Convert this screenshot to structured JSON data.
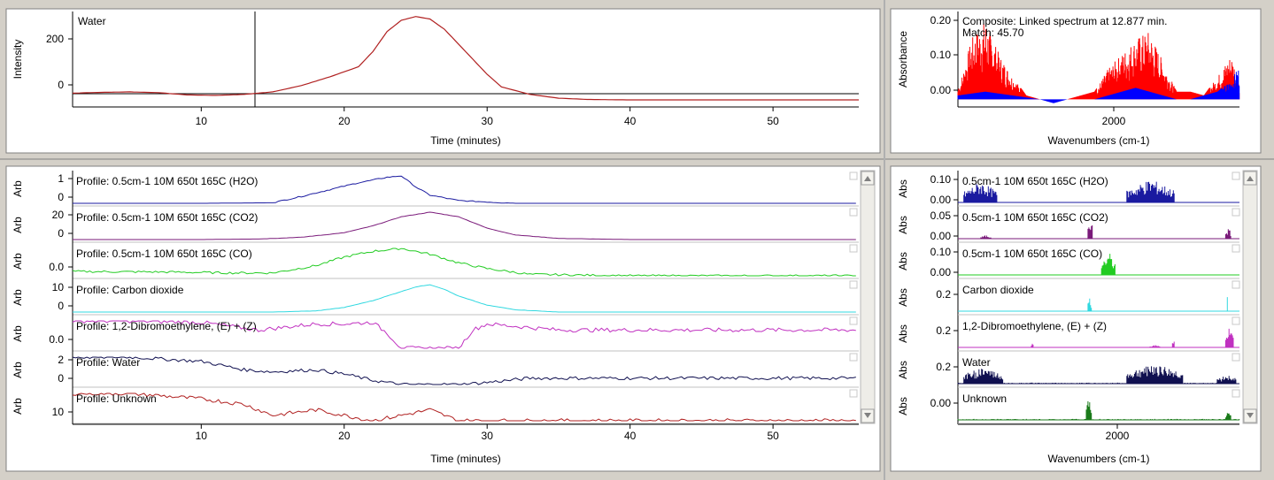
{
  "colors": {
    "background": "#d4d0c8",
    "panel": "#ffffff",
    "h2o_blue": "#1a1aa0",
    "co2_purple": "#7a1a7a",
    "co_green": "#22cc22",
    "carbon_dioxide_cyan": "#30d8e0",
    "dibromo_magenta": "#c030c0",
    "water_navy": "#101050",
    "unknown_red": "#b02020",
    "unknown_green": "#1a7a1a",
    "composite_red": "#ff0000",
    "composite_blue": "#0000ff"
  },
  "top_chromatogram": {
    "label": "Water",
    "ylabel": "Intensity",
    "xlabel": "Time (minutes)",
    "y_ticks": [
      "200",
      "0"
    ],
    "x_ticks": [
      "10",
      "20",
      "30",
      "40",
      "50"
    ]
  },
  "top_spectrum": {
    "title": "Composite: Linked spectrum at 12.877 min.",
    "match": "Match: 45.70",
    "ylabel": "Absorbance",
    "xlabel": "Wavenumbers (cm-1)",
    "y_ticks": [
      "0.20",
      "0.10",
      "0.00"
    ],
    "x_ticks": [
      "2000"
    ]
  },
  "profiles": {
    "xlabel": "Time (minutes)",
    "x_ticks": [
      "10",
      "20",
      "30",
      "40",
      "50"
    ],
    "rows": [
      {
        "axis": "Arb",
        "label": "Profile: 0.5cm-1 10M 650t 165C (H2O)",
        "ticks": [
          "1",
          "0"
        ]
      },
      {
        "axis": "Arb",
        "label": "Profile: 0.5cm-1 10M 650t 165C (CO2)",
        "ticks": [
          "20",
          "0"
        ]
      },
      {
        "axis": "Arb",
        "label": "Profile: 0.5cm-1 10M 650t 165C (CO)",
        "ticks": [
          "0.0"
        ]
      },
      {
        "axis": "Arb",
        "label": "Profile: Carbon dioxide",
        "ticks": [
          "10",
          "0"
        ]
      },
      {
        "axis": "Arb",
        "label": "Profile: 1,2-Dibromoethylene, (E) + (Z)",
        "ticks": [
          "0.0"
        ]
      },
      {
        "axis": "Arb",
        "label": "Profile: Water",
        "ticks": [
          "2",
          "0"
        ]
      },
      {
        "axis": "Arb",
        "label": "Profile: Unknown",
        "ticks": [
          "10"
        ]
      }
    ]
  },
  "spectra": {
    "xlabel": "Wavenumbers (cm-1)",
    "x_ticks": [
      "2000"
    ],
    "rows": [
      {
        "axis": "Abs",
        "label": "0.5cm-1 10M 650t 165C (H2O)",
        "ticks": [
          "0.10",
          "0.00"
        ]
      },
      {
        "axis": "Abs",
        "label": "0.5cm-1 10M 650t 165C (CO2)",
        "ticks": [
          "0.05",
          "0.00"
        ]
      },
      {
        "axis": "Abs",
        "label": "0.5cm-1 10M 650t 165C (CO)",
        "ticks": [
          "0.10",
          "0.00"
        ]
      },
      {
        "axis": "Abs",
        "label": "Carbon dioxide",
        "ticks": [
          "0.2"
        ]
      },
      {
        "axis": "Abs",
        "label": "1,2-Dibromoethylene, (E) + (Z)",
        "ticks": [
          "0.2"
        ]
      },
      {
        "axis": "Abs",
        "label": "Water",
        "ticks": [
          "0.2"
        ]
      },
      {
        "axis": "Abs",
        "label": "Unknown",
        "ticks": [
          "0.00"
        ]
      }
    ]
  },
  "chart_data": [
    {
      "type": "line",
      "series": [
        {
          "name": "Water",
          "x": [
            1,
            3,
            5,
            7,
            9,
            11,
            13,
            15,
            17,
            19,
            21,
            22,
            23,
            24,
            25,
            26,
            27,
            28,
            29,
            30,
            31,
            33,
            35,
            37,
            40,
            45,
            50,
            55
          ],
          "values": [
            -5,
            -2,
            0,
            -3,
            -12,
            -14,
            -10,
            0,
            25,
            60,
            100,
            160,
            240,
            285,
            300,
            290,
            250,
            190,
            130,
            70,
            20,
            -10,
            -25,
            -30,
            -32,
            -32,
            -32,
            -32
          ]
        }
      ],
      "xlim": [
        1,
        56
      ],
      "ylim": [
        -60,
        320
      ],
      "xlabel": "Time (minutes)",
      "ylabel": "Intensity"
    },
    {
      "type": "area",
      "series": [
        {
          "x": [
            1550,
            1600,
            1650,
            1700,
            1750,
            1800,
            1850,
            1900,
            1950,
            2000,
            2050,
            2100,
            2150,
            2200,
            2250,
            2300,
            2350,
            2400,
            2450,
            2500,
            2550,
            2580
          ],
          "values": [
            0.02,
            0.16,
            0.21,
            0.12,
            0.06,
            0.01,
            0,
            0,
            0,
            0.01,
            0.02,
            0.08,
            0.12,
            0.16,
            0.18,
            0.1,
            0.02,
            0.02,
            0.01,
            0.06,
            0.12,
            0.05
          ]
        },
        {
          "x": [
            1550,
            1650,
            1750,
            1850,
            1900,
            1950,
            2000,
            2050,
            2100,
            2150,
            2200,
            2250,
            2300,
            2350,
            2400,
            2450,
            2500,
            2550,
            2580
          ],
          "values": [
            0.01,
            0.02,
            0.01,
            0,
            -0.01,
            0,
            0,
            0,
            0.01,
            0.02,
            0.03,
            0.02,
            0.01,
            0,
            0,
            0.01,
            0.02,
            0.05,
            0.09
          ]
        }
      ],
      "xlim": [
        1550,
        2580
      ],
      "ylim": [
        -0.02,
        0.23
      ],
      "xlabel": "Wavenumbers (cm-1)",
      "ylabel": "Absorbance"
    },
    {
      "type": "line",
      "xlim": [
        1,
        56
      ],
      "xlabel": "Time (minutes)",
      "series": [
        {
          "name": "Profile: 0.5cm-1 10M 650t 165C (H2O)",
          "x": [
            1,
            10,
            15,
            17,
            19,
            21,
            23,
            24,
            25,
            26,
            28,
            30,
            32,
            34,
            40,
            56
          ],
          "values": [
            0,
            0,
            0.02,
            0.25,
            0.5,
            0.75,
            0.95,
            1.0,
            0.6,
            0.3,
            0.1,
            0.05,
            0,
            0,
            0,
            0
          ]
        },
        {
          "name": "Profile: 0.5cm-1 10M 650t 165C (CO2)",
          "x": [
            1,
            10,
            14,
            17,
            20,
            22,
            24,
            26,
            28,
            30,
            32,
            35,
            40,
            56
          ],
          "values": [
            0,
            0,
            0.5,
            2,
            6,
            12,
            20,
            24,
            20,
            10,
            4,
            1,
            0,
            0
          ]
        },
        {
          "name": "Profile: 0.5cm-1 10M 650t 165C (CO)",
          "x": [
            1,
            8,
            12,
            15,
            18,
            20,
            22,
            24,
            26,
            28,
            30,
            33,
            40,
            50,
            56
          ],
          "values": [
            0.2,
            0.18,
            0.15,
            0.15,
            0.4,
            0.7,
            0.9,
            1.0,
            0.8,
            0.5,
            0.3,
            0.1,
            0.05,
            0.05,
            0.05
          ]
        },
        {
          "name": "Profile: Carbon dioxide",
          "x": [
            1,
            15,
            18,
            20,
            22,
            24,
            25,
            26,
            27,
            28,
            30,
            32,
            35,
            40,
            56
          ],
          "values": [
            0,
            0,
            0.5,
            2,
            5,
            9,
            11,
            12,
            10,
            7,
            3,
            1,
            0,
            0,
            0
          ]
        },
        {
          "name": "Profile: 1,2-Dibromoethylene, (E) + (Z)",
          "x": [
            1,
            5,
            10,
            14,
            16,
            18,
            20,
            22,
            23,
            24,
            28,
            29,
            30,
            35,
            40,
            45,
            50,
            56
          ],
          "values": [
            0.9,
            0.9,
            0.85,
            0.6,
            0.7,
            0.8,
            0.8,
            0.85,
            0.5,
            0,
            0,
            0.6,
            0.8,
            0.6,
            0.6,
            0.6,
            0.6,
            0.6
          ]
        },
        {
          "name": "Profile: Water",
          "x": [
            1,
            5,
            10,
            13,
            15,
            18,
            20,
            22,
            24,
            26,
            28,
            30,
            33,
            40,
            45,
            50,
            56
          ],
          "values": [
            2.6,
            2.6,
            2.2,
            1.4,
            1.2,
            1.4,
            1.0,
            0.4,
            0,
            0,
            0,
            0.2,
            0.6,
            0.6,
            0.6,
            0.6,
            0.6
          ]
        },
        {
          "name": "Profile: Unknown",
          "x": [
            1,
            5,
            10,
            13,
            15,
            18,
            20,
            22,
            24,
            26,
            28,
            30,
            35,
            40,
            45,
            50,
            56
          ],
          "values": [
            10,
            10,
            9,
            8,
            6,
            7,
            6,
            5,
            6,
            7,
            5,
            5,
            5,
            5,
            5,
            5,
            5
          ]
        }
      ]
    }
  ]
}
